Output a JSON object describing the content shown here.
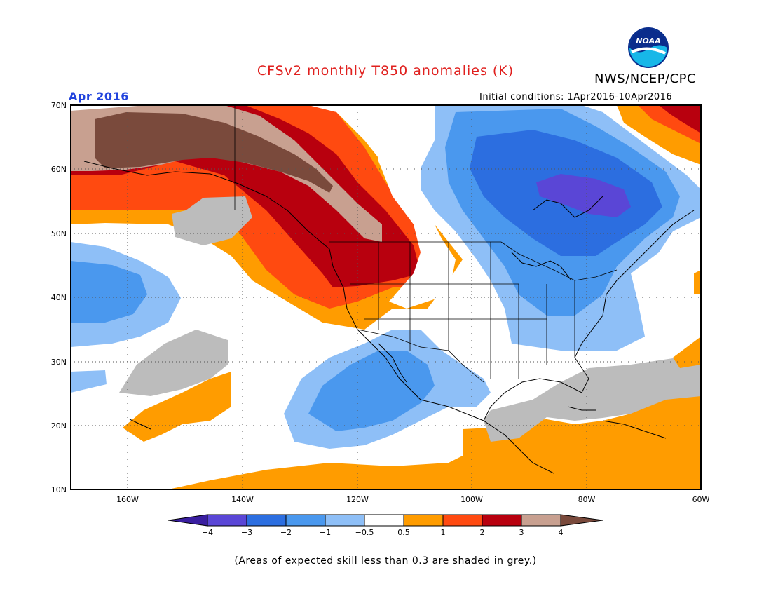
{
  "header": {
    "title": "CFSv2 monthly T850 anomalies (K)",
    "org": "NWS/NCEP/CPC",
    "period": "Apr 2016",
    "initial_conditions": "Initial conditions: 1Apr2016-10Apr2016",
    "logo_text": "NOAA"
  },
  "colors": {
    "title": "#e0201e",
    "period": "#2244dd",
    "minus4": "#3a1ea0",
    "minus3": "#5a46d6",
    "minus2": "#2c6ee0",
    "minus1": "#4a98ee",
    "minus05": "#8ebff7",
    "neutral": "#ffffff",
    "plus05": "#ff9c00",
    "plus1": "#ff4a10",
    "plus2": "#b8000e",
    "plus3": "#c8a090",
    "plus4": "#7a4a3c",
    "grey": "#bcbcbc"
  },
  "map": {
    "lon_range": [
      -170,
      -60
    ],
    "lat_range": [
      10,
      70
    ],
    "lat_labels": [
      "70N",
      "60N",
      "50N",
      "40N",
      "30N",
      "20N",
      "10N"
    ],
    "lon_labels": [
      "160W",
      "140W",
      "120W",
      "100W",
      "80W",
      "60W"
    ]
  },
  "colorbar": {
    "labels": [
      "−4",
      "−3",
      "−2",
      "−1",
      "−0.5",
      "0.5",
      "1",
      "2",
      "3",
      "4"
    ]
  },
  "footer": {
    "note": "(Areas of expected skill less than 0.3 are shaded in grey.)"
  }
}
